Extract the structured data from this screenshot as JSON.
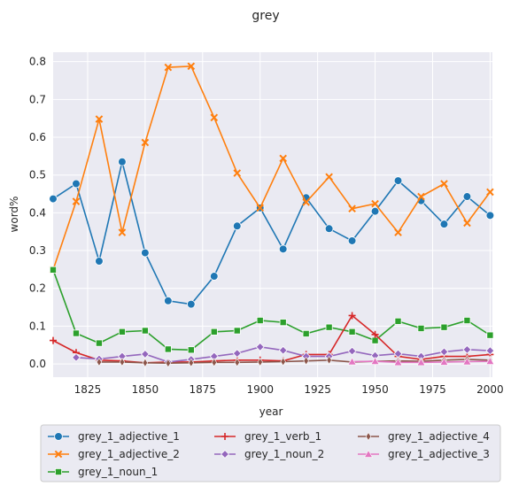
{
  "chart_data": {
    "type": "line",
    "title": "grey",
    "xlabel": "year",
    "ylabel": "word%",
    "xlim": [
      1810,
      2001
    ],
    "ylim": [
      -0.035,
      0.825
    ],
    "xticks": [
      1825,
      1850,
      1875,
      1900,
      1925,
      1950,
      1975,
      2000
    ],
    "yticks": [
      0.0,
      0.1,
      0.2,
      0.3,
      0.4,
      0.5,
      0.6,
      0.7,
      0.8
    ],
    "grid": true,
    "legend_placement": "bottom",
    "series": [
      {
        "name": "grey_1_adjective_1",
        "color": "#1f77b4",
        "marker": "circle",
        "x": [
          1810,
          1820,
          1830,
          1840,
          1850,
          1860,
          1870,
          1880,
          1890,
          1900,
          1910,
          1920,
          1930,
          1940,
          1950,
          1960,
          1970,
          1980,
          1990,
          2000
        ],
        "y": [
          0.437,
          0.477,
          0.272,
          0.535,
          0.294,
          0.167,
          0.158,
          0.232,
          0.365,
          0.413,
          0.304,
          0.44,
          0.358,
          0.326,
          0.404,
          0.485,
          0.432,
          0.37,
          0.443,
          0.393
        ]
      },
      {
        "name": "grey_1_adjective_2",
        "color": "#ff7f0e",
        "marker": "x",
        "x": [
          1810,
          1820,
          1830,
          1840,
          1850,
          1860,
          1870,
          1880,
          1890,
          1900,
          1910,
          1920,
          1930,
          1940,
          1950,
          1960,
          1970,
          1980,
          1990,
          2000
        ],
        "y": [
          0.249,
          0.43,
          0.648,
          0.348,
          0.586,
          0.785,
          0.788,
          0.652,
          0.505,
          0.413,
          0.544,
          0.428,
          0.495,
          0.411,
          0.424,
          0.348,
          0.443,
          0.477,
          0.373,
          0.455
        ]
      },
      {
        "name": "grey_1_noun_1",
        "color": "#2ca02c",
        "marker": "square",
        "x": [
          1810,
          1820,
          1830,
          1840,
          1850,
          1860,
          1870,
          1880,
          1890,
          1900,
          1910,
          1920,
          1930,
          1940,
          1950,
          1960,
          1970,
          1980,
          1990,
          2000
        ],
        "y": [
          0.249,
          0.081,
          0.055,
          0.085,
          0.088,
          0.039,
          0.037,
          0.085,
          0.088,
          0.115,
          0.11,
          0.08,
          0.097,
          0.085,
          0.062,
          0.113,
          0.094,
          0.097,
          0.115,
          0.076
        ]
      },
      {
        "name": "grey_1_verb_1",
        "color": "#d62728",
        "marker": "plus",
        "x": [
          1810,
          1820,
          1830,
          1840,
          1850,
          1860,
          1870,
          1880,
          1890,
          1900,
          1910,
          1920,
          1930,
          1940,
          1950,
          1960,
          1970,
          1980,
          1990,
          2000
        ],
        "y": [
          0.062,
          0.03,
          0.01,
          0.008,
          0.003,
          0.005,
          0.005,
          0.008,
          0.01,
          0.01,
          0.008,
          0.025,
          0.025,
          0.128,
          0.078,
          0.02,
          0.012,
          0.02,
          0.02,
          0.025
        ]
      },
      {
        "name": "grey_1_noun_2",
        "color": "#9467bd",
        "marker": "diamond",
        "x": [
          1820,
          1830,
          1840,
          1850,
          1860,
          1870,
          1880,
          1890,
          1900,
          1910,
          1920,
          1930,
          1940,
          1950,
          1960,
          1970,
          1980,
          1990,
          2000
        ],
        "y": [
          0.017,
          0.013,
          0.02,
          0.026,
          0.005,
          0.012,
          0.02,
          0.028,
          0.045,
          0.036,
          0.02,
          0.02,
          0.034,
          0.022,
          0.027,
          0.02,
          0.032,
          0.038,
          0.035
        ]
      },
      {
        "name": "grey_1_adjective_4",
        "color": "#8c564b",
        "marker": "thin-diamond",
        "x": [
          1830,
          1840,
          1850,
          1860,
          1870,
          1880,
          1890,
          1900,
          1910,
          1920,
          1930,
          1940,
          1950,
          1960,
          1970,
          1980,
          1990,
          2000
        ],
        "y": [
          0.005,
          0.005,
          0.003,
          0.002,
          0.003,
          0.004,
          0.004,
          0.005,
          0.006,
          0.008,
          0.01,
          0.005,
          0.007,
          0.008,
          0.007,
          0.01,
          0.012,
          0.01
        ]
      },
      {
        "name": "grey_1_adjective_3",
        "color": "#e377c2",
        "marker": "triangle",
        "x": [
          1940,
          1950,
          1960,
          1970,
          1980,
          1990,
          2000
        ],
        "y": [
          0.006,
          0.007,
          0.004,
          0.004,
          0.005,
          0.006,
          0.007
        ]
      }
    ]
  }
}
